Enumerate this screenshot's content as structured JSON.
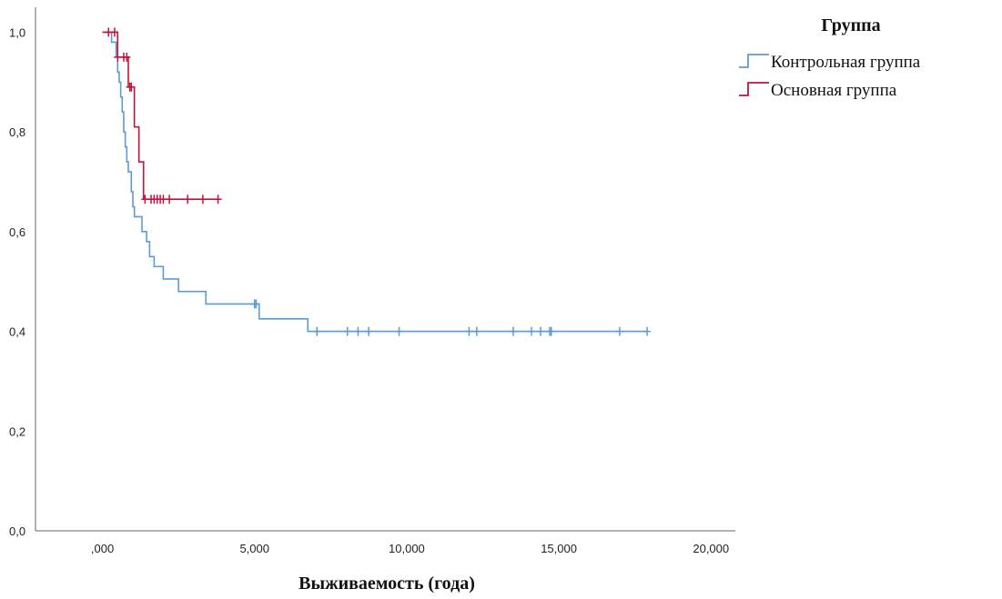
{
  "chart_data": {
    "type": "line",
    "subtype": "kaplan-meier",
    "title": "",
    "xlabel": "Выживаемость (года)",
    "ylabel": "",
    "xlim": [
      -2.2,
      20.8
    ],
    "ylim": [
      0,
      1.05
    ],
    "x_ticks": [
      {
        "value": 0,
        "label": ",000"
      },
      {
        "value": 5,
        "label": "5,000"
      },
      {
        "value": 10,
        "label": "10,000"
      },
      {
        "value": 15,
        "label": "15,000"
      },
      {
        "value": 20,
        "label": "20,000"
      }
    ],
    "y_ticks": [
      {
        "value": 0,
        "label": "0,0"
      },
      {
        "value": 0.2,
        "label": "0,2"
      },
      {
        "value": 0.4,
        "label": "0,4"
      },
      {
        "value": 0.6,
        "label": "0,6"
      },
      {
        "value": 0.8,
        "label": "0,8"
      },
      {
        "value": 1.0,
        "label": "1,0"
      }
    ],
    "grid": false,
    "legend": {
      "title": "Группа",
      "position": "top-right"
    },
    "series": [
      {
        "name": "Контрольная группа",
        "color": "#5b9bd5",
        "steps": [
          [
            0.1,
            1.0
          ],
          [
            0.3,
            0.98
          ],
          [
            0.45,
            0.95
          ],
          [
            0.5,
            0.92
          ],
          [
            0.55,
            0.9
          ],
          [
            0.6,
            0.87
          ],
          [
            0.65,
            0.84
          ],
          [
            0.7,
            0.8
          ],
          [
            0.75,
            0.77
          ],
          [
            0.8,
            0.74
          ],
          [
            0.85,
            0.72
          ],
          [
            0.95,
            0.68
          ],
          [
            1.0,
            0.65
          ],
          [
            1.05,
            0.63
          ],
          [
            1.3,
            0.6
          ],
          [
            1.45,
            0.58
          ],
          [
            1.55,
            0.55
          ],
          [
            1.7,
            0.53
          ],
          [
            2.0,
            0.505
          ],
          [
            2.5,
            0.48
          ],
          [
            3.4,
            0.455
          ],
          [
            5.15,
            0.425
          ],
          [
            6.75,
            0.4
          ],
          [
            17.9,
            0.4
          ]
        ],
        "censored": [
          5.0,
          5.05,
          7.05,
          8.05,
          8.4,
          8.75,
          9.75,
          12.05,
          12.3,
          13.5,
          14.1,
          14.4,
          14.7,
          14.75,
          17.0,
          17.9
        ]
      },
      {
        "name": "Основная группа",
        "color": "#c0143c",
        "steps": [
          [
            0.0,
            1.0
          ],
          [
            0.5,
            0.95
          ],
          [
            0.85,
            0.89
          ],
          [
            1.05,
            0.81
          ],
          [
            1.2,
            0.74
          ],
          [
            1.35,
            0.665
          ],
          [
            3.8,
            0.665
          ]
        ],
        "censored": [
          0.2,
          0.4,
          0.5,
          0.7,
          0.8,
          0.9,
          0.95,
          1.4,
          1.6,
          1.7,
          1.8,
          1.9,
          2.0,
          2.2,
          2.8,
          3.3,
          3.8
        ]
      }
    ]
  }
}
